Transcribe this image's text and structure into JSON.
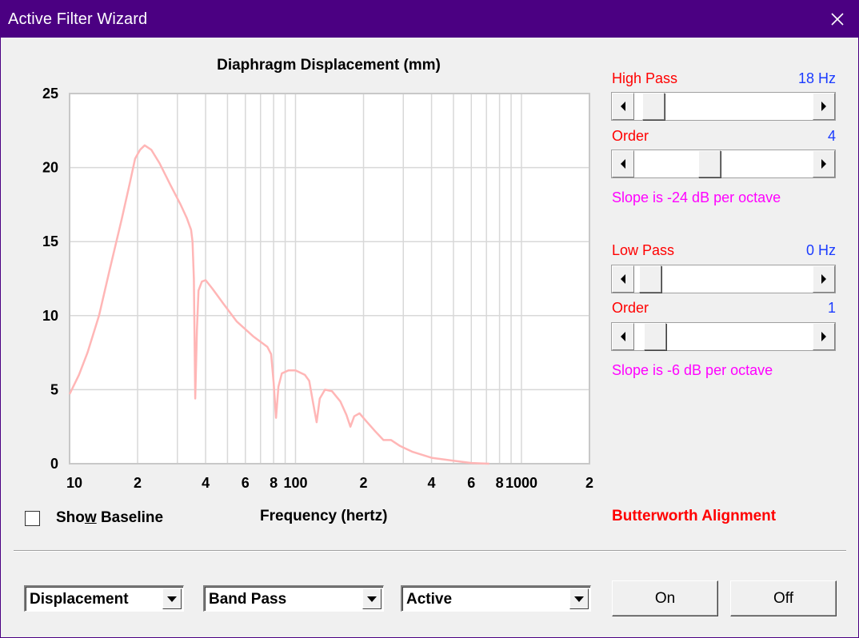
{
  "window": {
    "title": "Active Filter Wizard"
  },
  "chart_data": {
    "type": "line",
    "title": "Diaphragm Displacement (mm)",
    "xlabel": "Frequency (hertz)",
    "ylabel": "",
    "xscale": "log",
    "xlim": [
      10,
      2000
    ],
    "ylim": [
      0,
      25
    ],
    "y_ticks": [
      0,
      5,
      10,
      15,
      20,
      25
    ],
    "x_tick_labels": [
      {
        "value": 10,
        "label": "10"
      },
      {
        "value": 20,
        "label": "2"
      },
      {
        "value": 40,
        "label": "4"
      },
      {
        "value": 60,
        "label": "6"
      },
      {
        "value": 80,
        "label": "8"
      },
      {
        "value": 100,
        "label": "100"
      },
      {
        "value": 200,
        "label": "2"
      },
      {
        "value": 400,
        "label": "4"
      },
      {
        "value": 600,
        "label": "6"
      },
      {
        "value": 800,
        "label": "8"
      },
      {
        "value": 1000,
        "label": "1000"
      },
      {
        "value": 2000,
        "label": "2"
      }
    ],
    "grid": true,
    "series": [
      {
        "name": "Displacement",
        "color": "#ffb6b6",
        "points": [
          [
            10.0,
            4.7
          ],
          [
            11.0,
            6.0
          ],
          [
            12.0,
            7.5
          ],
          [
            13.5,
            10.0
          ],
          [
            15.0,
            13.0
          ],
          [
            17.0,
            16.5
          ],
          [
            18.5,
            19.0
          ],
          [
            19.5,
            20.6
          ],
          [
            20.5,
            21.2
          ],
          [
            21.5,
            21.5
          ],
          [
            23.0,
            21.2
          ],
          [
            25.0,
            20.3
          ],
          [
            28.0,
            18.8
          ],
          [
            31.0,
            17.5
          ],
          [
            33.0,
            16.6
          ],
          [
            34.5,
            15.8
          ],
          [
            35.0,
            15.0
          ],
          [
            35.5,
            12.5
          ],
          [
            36.0,
            4.4
          ],
          [
            36.6,
            9.0
          ],
          [
            37.2,
            11.7
          ],
          [
            38.5,
            12.3
          ],
          [
            40.0,
            12.4
          ],
          [
            43.0,
            11.8
          ],
          [
            48.0,
            10.8
          ],
          [
            55.0,
            9.6
          ],
          [
            65.0,
            8.6
          ],
          [
            75.0,
            7.9
          ],
          [
            78.0,
            7.4
          ],
          [
            80.0,
            5.5
          ],
          [
            82.0,
            3.1
          ],
          [
            84.0,
            5.2
          ],
          [
            87.0,
            6.1
          ],
          [
            93.0,
            6.3
          ],
          [
            100.0,
            6.3
          ],
          [
            110.0,
            6.0
          ],
          [
            115.0,
            5.6
          ],
          [
            120.0,
            4.0
          ],
          [
            124.0,
            2.8
          ],
          [
            128.0,
            4.4
          ],
          [
            135.0,
            5.0
          ],
          [
            145.0,
            4.9
          ],
          [
            158.0,
            4.2
          ],
          [
            168.0,
            3.3
          ],
          [
            175.0,
            2.5
          ],
          [
            182.0,
            3.2
          ],
          [
            192.0,
            3.4
          ],
          [
            205.0,
            2.9
          ],
          [
            225.0,
            2.2
          ],
          [
            245.0,
            1.6
          ],
          [
            265.0,
            1.6
          ],
          [
            290.0,
            1.2
          ],
          [
            330.0,
            0.8
          ],
          [
            400.0,
            0.4
          ],
          [
            500.0,
            0.2
          ],
          [
            600.0,
            0.05
          ],
          [
            720.0,
            0.0
          ]
        ]
      }
    ]
  },
  "show_baseline": {
    "label_pre": "Sho",
    "label_underline": "w",
    "label_post": " Baseline",
    "checked": false
  },
  "alignment": "Butterworth Alignment",
  "high_pass": {
    "label": "High Pass",
    "value": "18 Hz",
    "position": 0.05
  },
  "high_pass_order": {
    "label": "Order",
    "value": "4",
    "position": 0.41
  },
  "high_pass_slope": "Slope is -24 dB per octave",
  "low_pass": {
    "label": "Low Pass",
    "value": "0 Hz",
    "position": 0.03
  },
  "low_pass_order": {
    "label": "Order",
    "value": "1",
    "position": 0.06
  },
  "low_pass_slope": "Slope is -6 dB per octave",
  "combos": {
    "display": "Displacement",
    "filter_type": "Band Pass",
    "mode": "Active"
  },
  "buttons": {
    "on": "On",
    "off": "Off"
  },
  "colors": {
    "titlebar": "#4b0082",
    "curve": "#ffb6b6",
    "param_label": "#ff0000",
    "param_value": "#1a3bff",
    "slope_text": "#ff00ff",
    "alignment_text": "#ff0000"
  }
}
